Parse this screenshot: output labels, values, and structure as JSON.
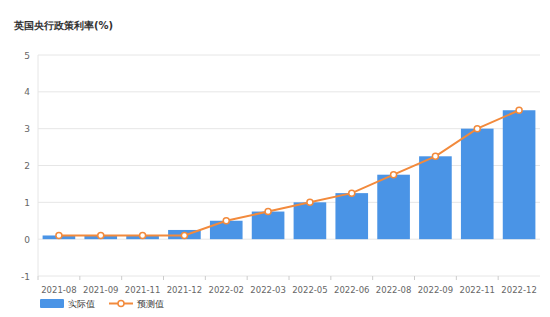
{
  "chart_data": {
    "type": "bar",
    "title": "英国央行政策利率(%)",
    "categories": [
      "2021-08",
      "2021-09",
      "2021-11",
      "2021-12",
      "2022-02",
      "2022-03",
      "2022-05",
      "2022-06",
      "2022-08",
      "2022-09",
      "2022-11",
      "2022-12"
    ],
    "series": [
      {
        "name": "实际值",
        "type": "bar",
        "color": "#4a94e6",
        "values": [
          0.1,
          0.1,
          0.1,
          0.25,
          0.5,
          0.75,
          1,
          1.25,
          1.75,
          2.25,
          3,
          3.5
        ]
      },
      {
        "name": "预测值",
        "type": "line",
        "color": "#f28a3c",
        "marker": "circle",
        "values": [
          0.1,
          0.1,
          0.1,
          0.1,
          0.5,
          0.75,
          1,
          1.25,
          1.75,
          2.25,
          3,
          3.5
        ]
      }
    ],
    "ylim": [
      -1,
      5
    ],
    "yticks": [
      -1,
      0,
      1,
      2,
      3,
      4,
      5
    ],
    "grid": true,
    "legend": "bottom-left"
  }
}
